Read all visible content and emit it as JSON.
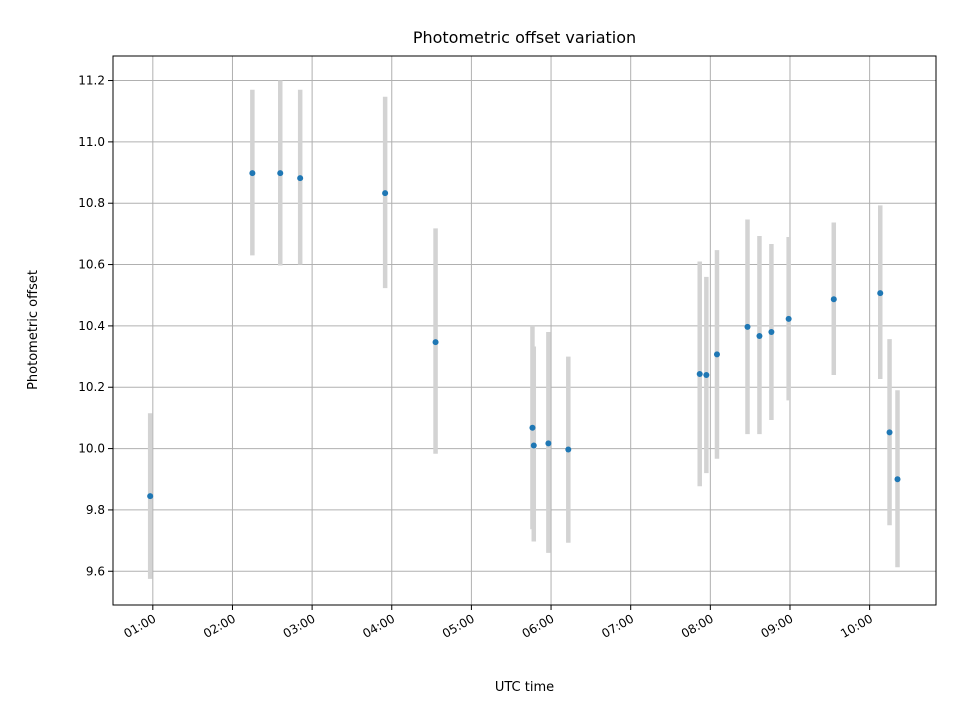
{
  "chart_data": {
    "type": "scatter",
    "title": "Photometric offset variation",
    "xlabel": "UTC time",
    "ylabel": "Photometric offset",
    "x_axis_kind": "time",
    "xlim": [
      "00:30",
      "10:50"
    ],
    "ylim": [
      9.49,
      11.28
    ],
    "grid": true,
    "x_ticks": [
      "01:00",
      "02:00",
      "03:00",
      "04:00",
      "05:00",
      "06:00",
      "07:00",
      "08:00",
      "09:00",
      "10:00"
    ],
    "y_ticks": [
      "9.6",
      "9.8",
      "10.0",
      "10.2",
      "10.4",
      "10.6",
      "10.8",
      "11.0",
      "11.2"
    ],
    "colors": {
      "marker": "#1f77b4",
      "errorbar": "#d3d3d3",
      "grid": "#b0b0b0"
    },
    "points": [
      {
        "x": "00:58",
        "y": 9.845,
        "lo": 9.575,
        "hi": 10.115
      },
      {
        "x": "02:15",
        "y": 10.898,
        "lo": 10.63,
        "hi": 11.17
      },
      {
        "x": "02:36",
        "y": 10.898,
        "lo": 10.597,
        "hi": 11.2
      },
      {
        "x": "02:51",
        "y": 10.882,
        "lo": 10.6,
        "hi": 11.17
      },
      {
        "x": "03:55",
        "y": 10.833,
        "lo": 10.523,
        "hi": 11.147
      },
      {
        "x": "04:33",
        "y": 10.347,
        "lo": 9.983,
        "hi": 10.718
      },
      {
        "x": "05:46",
        "y": 10.068,
        "lo": 9.737,
        "hi": 10.4
      },
      {
        "x": "05:47",
        "y": 10.01,
        "lo": 9.697,
        "hi": 10.333
      },
      {
        "x": "05:58",
        "y": 10.017,
        "lo": 9.66,
        "hi": 10.38
      },
      {
        "x": "06:13",
        "y": 9.997,
        "lo": 9.693,
        "hi": 10.3
      },
      {
        "x": "07:52",
        "y": 10.243,
        "lo": 9.877,
        "hi": 10.61
      },
      {
        "x": "07:57",
        "y": 10.24,
        "lo": 9.92,
        "hi": 10.56
      },
      {
        "x": "08:05",
        "y": 10.307,
        "lo": 9.967,
        "hi": 10.647
      },
      {
        "x": "08:28",
        "y": 10.397,
        "lo": 10.047,
        "hi": 10.747
      },
      {
        "x": "08:37",
        "y": 10.367,
        "lo": 10.047,
        "hi": 10.693
      },
      {
        "x": "08:46",
        "y": 10.38,
        "lo": 10.093,
        "hi": 10.667
      },
      {
        "x": "08:59",
        "y": 10.423,
        "lo": 10.157,
        "hi": 10.69
      },
      {
        "x": "09:33",
        "y": 10.487,
        "lo": 10.24,
        "hi": 10.737
      },
      {
        "x": "10:08",
        "y": 10.507,
        "lo": 10.227,
        "hi": 10.793
      },
      {
        "x": "10:15",
        "y": 10.053,
        "lo": 9.75,
        "hi": 10.357
      },
      {
        "x": "10:21",
        "y": 9.9,
        "lo": 9.613,
        "hi": 10.19
      }
    ]
  }
}
